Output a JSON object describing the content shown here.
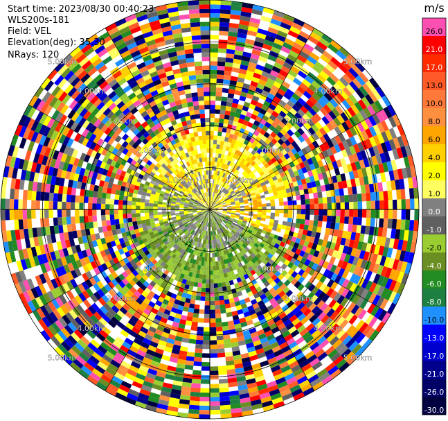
{
  "header": {
    "start_time": "Start time: 2023/08/30 00:40:23",
    "instrument": "WLS200s-181",
    "field": "Field: VEL",
    "elevation": "Elevation(deg): 35.30",
    "nrays": "NRays: 120"
  },
  "chart_data": {
    "type": "heatmap",
    "projection": "polar-ppi",
    "field": "VEL",
    "units": "m/s",
    "nrays": 120,
    "elevation_deg": 35.3,
    "range_ring_labels_km": [
      "1.00km",
      "2.00km",
      "3.00km",
      "4.00km",
      "5.00km"
    ],
    "colorbar": {
      "units_label": "m/s",
      "tick_labels": [
        "26.0",
        "21.0",
        "17.0",
        "13.0",
        "10.0",
        "8.0",
        "6.0",
        "4.0",
        "2.0",
        "1.0",
        "0.0",
        "-1.0",
        "-2.0",
        "-4.0",
        "-6.0",
        "-8.0",
        "-10.0",
        "-13.0",
        "-17.0",
        "-21.0",
        "-26.0",
        "-30.0"
      ],
      "colors": [
        "#ff4fb0",
        "#ff0000",
        "#ff2a00",
        "#ff5a28",
        "#ff7a3a",
        "#ff9040",
        "#ffa500",
        "#ffd000",
        "#ffff00",
        "#ffff60",
        "#808080",
        "#606060",
        "#9acd32",
        "#6b8e23",
        "#228b22",
        "#1e8040",
        "#1e90ff",
        "#0000ff",
        "#0000cd",
        "#00008b",
        "#000066",
        "#000040"
      ]
    },
    "pattern": {
      "inner_radius_km": 2.0,
      "max_range_km": 5.0,
      "dominant_near_field": "near-zero velocities; positive (yellow) to the north/east, negative (olive green) to the south/west",
      "far_field": "noise"
    }
  }
}
